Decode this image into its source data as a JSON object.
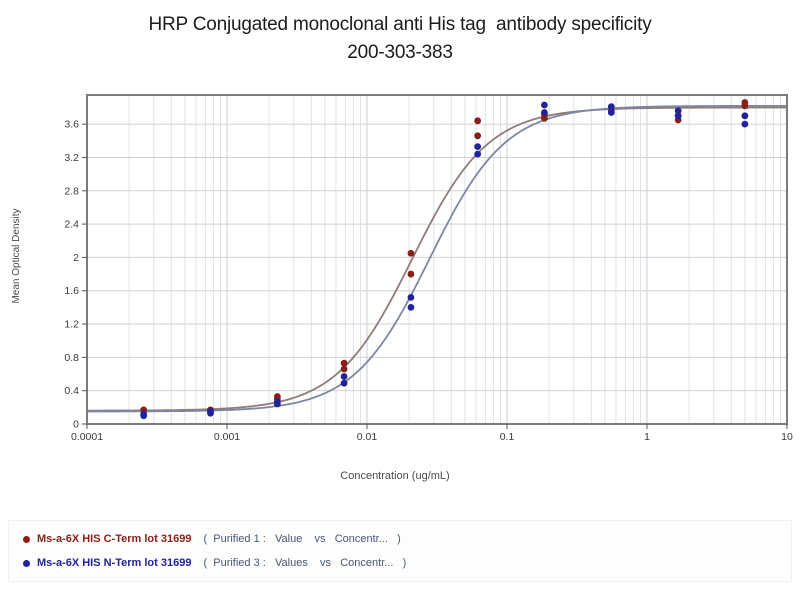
{
  "title": {
    "line1": "HRP Conjugated monoclonal anti His tag  antibody specificity",
    "line2": "200-303-383"
  },
  "chart_data": {
    "type": "scatter",
    "title": "HRP Conjugated monoclonal anti His tag antibody specificity 200-303-383",
    "xlabel": "Concentration (ug/mL)",
    "ylabel": "Mean Optical Density",
    "x_scale": "log",
    "xlim": [
      0.0001,
      10
    ],
    "ylim": [
      0,
      3.95
    ],
    "grid": true,
    "x_ticks": [
      0.0001,
      0.001,
      0.01,
      0.1,
      1,
      10
    ],
    "x_tick_labels": [
      "0.0001",
      "0.001",
      "0.01",
      "0.1",
      "1",
      "10"
    ],
    "y_ticks": [
      0,
      0.4,
      0.8,
      1.2,
      1.6,
      2,
      2.4,
      2.8,
      3.2,
      3.6
    ],
    "y_tick_labels": [
      "0",
      "0.4",
      "0.8",
      "1.2",
      "1.6",
      "2",
      "2.4",
      "2.8",
      "3.2",
      "3.6"
    ],
    "legend_position": "bottom-left",
    "series": [
      {
        "name": "Ms-a-6X HIS C-Term lot 31699",
        "legend_suffix": "(  Purified 1 :   Value    vs   Concentr...   )",
        "color": "#8a1f17",
        "curve_color": "#8f7b78",
        "fit": {
          "model": "4PL",
          "bottom": 0.16,
          "top": 3.8,
          "ec50": 0.021,
          "hill": 1.6
        },
        "points": [
          [
            0.000254,
            0.17
          ],
          [
            0.000762,
            0.17
          ],
          [
            0.00229,
            0.3
          ],
          [
            0.00229,
            0.33
          ],
          [
            0.00686,
            0.66
          ],
          [
            0.00686,
            0.73
          ],
          [
            0.0206,
            1.8
          ],
          [
            0.0206,
            2.05
          ],
          [
            0.0617,
            3.46
          ],
          [
            0.0617,
            3.64
          ],
          [
            0.185,
            3.67
          ],
          [
            0.185,
            3.72
          ],
          [
            0.556,
            3.76
          ],
          [
            1.67,
            3.65
          ],
          [
            1.67,
            3.7
          ],
          [
            5,
            3.82
          ],
          [
            5,
            3.86
          ]
        ]
      },
      {
        "name": "Ms-a-6X HIS N-Term lot 31699",
        "legend_suffix": "(  Purified 3 :   Values    vs   Concentr...   )",
        "color": "#22229a",
        "curve_color": "#7d86a3",
        "fit": {
          "model": "4PL",
          "bottom": 0.15,
          "top": 3.82,
          "ec50": 0.028,
          "hill": 1.6
        },
        "points": [
          [
            0.000254,
            0.1
          ],
          [
            0.000254,
            0.12
          ],
          [
            0.000762,
            0.13
          ],
          [
            0.000762,
            0.15
          ],
          [
            0.00229,
            0.24
          ],
          [
            0.00229,
            0.27
          ],
          [
            0.00686,
            0.49
          ],
          [
            0.00686,
            0.57
          ],
          [
            0.0206,
            1.4
          ],
          [
            0.0206,
            1.52
          ],
          [
            0.0617,
            3.24
          ],
          [
            0.0617,
            3.33
          ],
          [
            0.185,
            3.74
          ],
          [
            0.185,
            3.83
          ],
          [
            0.556,
            3.74
          ],
          [
            0.556,
            3.81
          ],
          [
            1.67,
            3.7
          ],
          [
            1.67,
            3.76
          ],
          [
            5,
            3.6
          ],
          [
            5,
            3.7
          ]
        ]
      }
    ],
    "colors": {
      "frame": "#7c7c7c",
      "grid_minor": "#dde2e7",
      "grid_major_vertical": "#c9cfd6",
      "grid_horizontal": "#cdd1d5",
      "tick": "#555555",
      "tick_text": "#3a3a3a"
    }
  }
}
